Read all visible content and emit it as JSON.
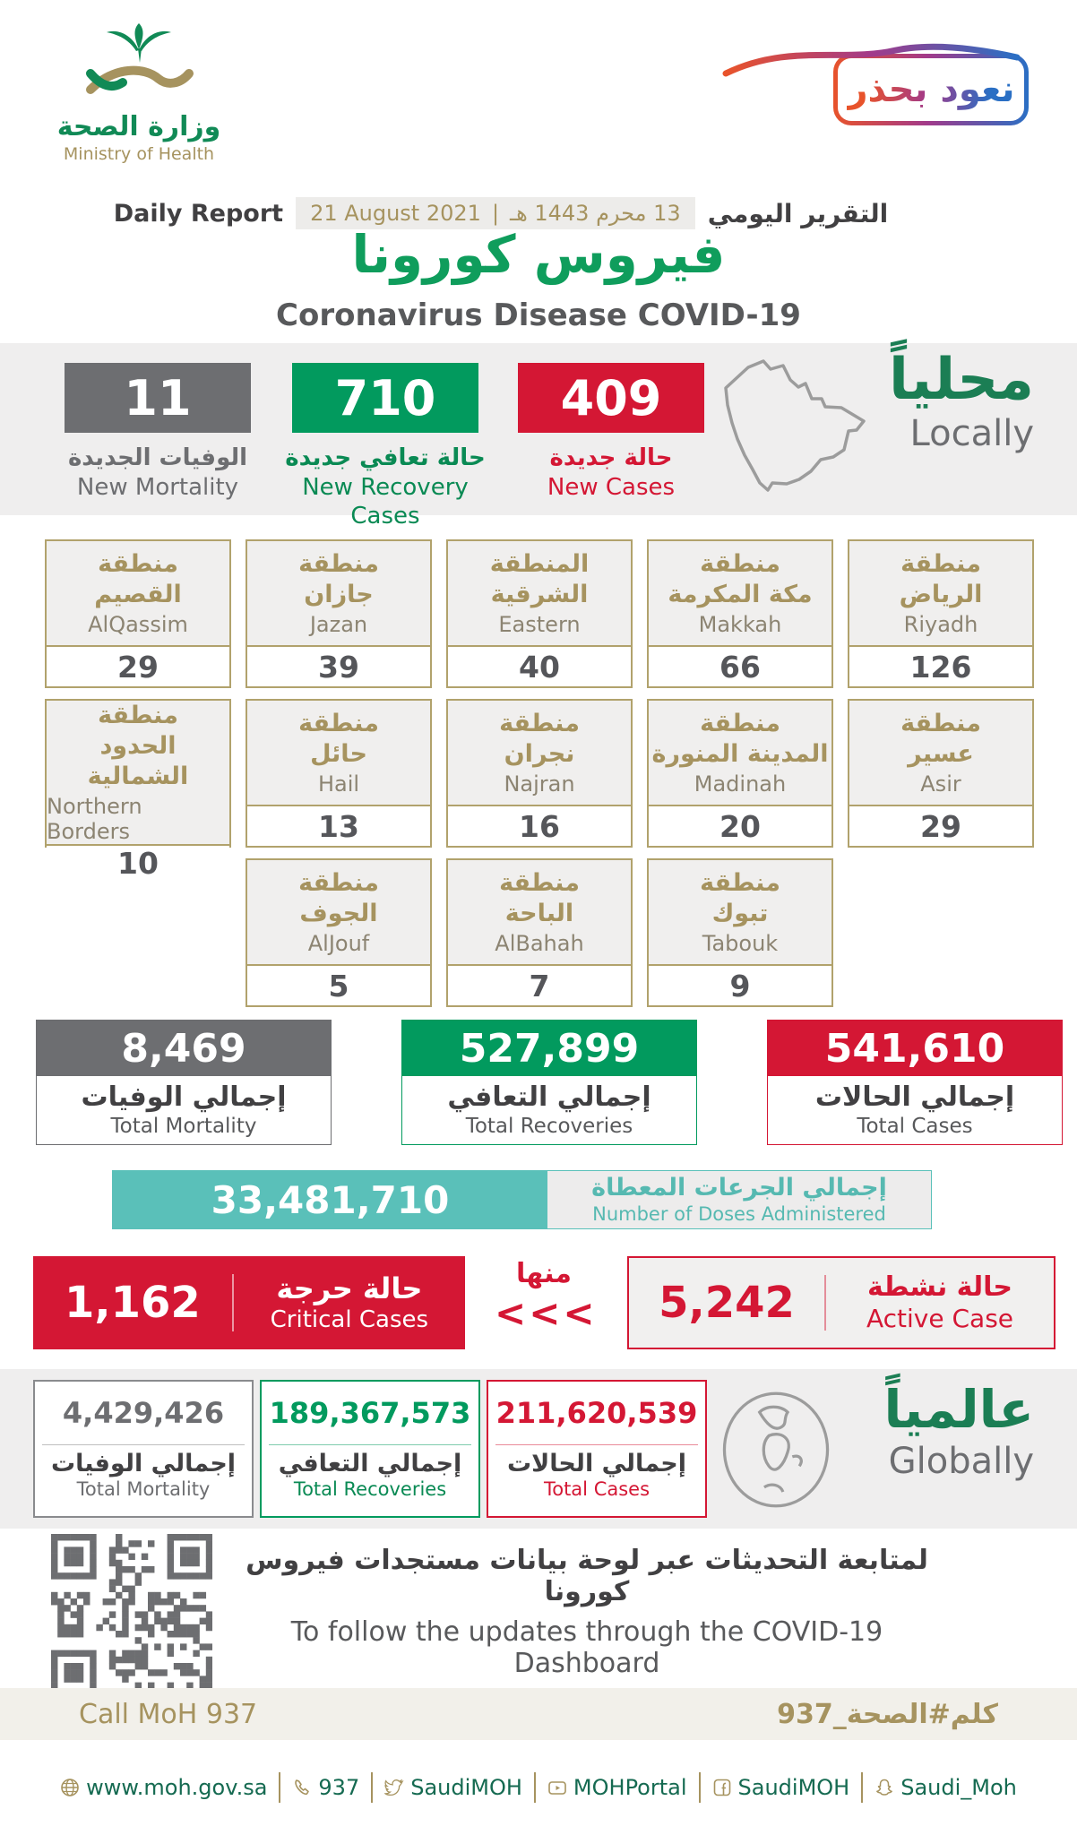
{
  "header": {
    "logo": {
      "title_ar": "وزارة الصحة",
      "title_en": "Ministry of Health"
    },
    "badge": {
      "text_ar": "نعود بحذر"
    },
    "report": {
      "label_en": "Daily Report",
      "date_gregorian": "21 August 2021",
      "date_separator": "|",
      "date_hijri": "13 محرم 1443 هـ",
      "label_ar": "التقرير اليومي"
    },
    "title_ar": "فيروس كورونا",
    "title_en": "Coronavirus Disease COVID-19"
  },
  "locally": {
    "heading_ar": "محلياً",
    "heading_en": "Locally",
    "new_mortality": {
      "value": "11",
      "label_ar": "الوفيات الجديدة",
      "label_en": "New Mortality"
    },
    "new_recoveries": {
      "value": "710",
      "label_ar": "حالة تعافي جديدة",
      "label_en": "New Recovery Cases"
    },
    "new_cases": {
      "value": "409",
      "label_ar": "حالة جديدة",
      "label_en": "New Cases"
    }
  },
  "regions": {
    "items": [
      {
        "ar1": "منطقة",
        "ar2": "القصيم",
        "en": "AlQassim",
        "value": "29"
      },
      {
        "ar1": "منطقة",
        "ar2": "جازان",
        "en": "Jazan",
        "value": "39"
      },
      {
        "ar1": "المنطقة",
        "ar2": "الشرقية",
        "en": "Eastern",
        "value": "40"
      },
      {
        "ar1": "منطقة",
        "ar2": "مكة المكرمة",
        "en": "Makkah",
        "value": "66"
      },
      {
        "ar1": "منطقة",
        "ar2": "الرياض",
        "en": "Riyadh",
        "value": "126"
      },
      {
        "ar1": "منطقة",
        "ar2": "الحدود الشمالية",
        "en": "Northern Borders",
        "value": "10"
      },
      {
        "ar1": "منطقة",
        "ar2": "حائل",
        "en": "Hail",
        "value": "13"
      },
      {
        "ar1": "منطقة",
        "ar2": "نجران",
        "en": "Najran",
        "value": "16"
      },
      {
        "ar1": "منطقة",
        "ar2": "المدينة المنورة",
        "en": "Madinah",
        "value": "20"
      },
      {
        "ar1": "منطقة",
        "ar2": "عسير",
        "en": "Asir",
        "value": "29"
      },
      {
        "ar1": "منطقة",
        "ar2": "الجوف",
        "en": "AlJouf",
        "value": "5"
      },
      {
        "ar1": "منطقة",
        "ar2": "الباحة",
        "en": "AlBahah",
        "value": "7"
      },
      {
        "ar1": "منطقة",
        "ar2": "تبوك",
        "en": "Tabouk",
        "value": "9"
      }
    ]
  },
  "totals": {
    "mortality": {
      "value": "8,469",
      "label_ar": "إجمالي الوفيات",
      "label_en": "Total Mortality"
    },
    "recoveries": {
      "value": "527,899",
      "label_ar": "إجمالي التعافي",
      "label_en": "Total Recoveries"
    },
    "cases": {
      "value": "541,610",
      "label_ar": "إجمالي الحالات",
      "label_en": "Total Cases"
    }
  },
  "doses": {
    "value": "33,481,710",
    "label_ar": "إجمالي الجرعات المعطاة",
    "label_en": "Number of Doses Administered"
  },
  "critical": {
    "value": "1,162",
    "label_ar": "حالة حرجة",
    "label_en": "Critical Cases"
  },
  "of_which": {
    "label_ar": "منها",
    "chevrons": "<<<"
  },
  "active": {
    "value": "5,242",
    "label_ar": "حالة نشطة",
    "label_en": "Active Case"
  },
  "globally": {
    "heading_ar": "عالمياً",
    "heading_en": "Globally",
    "mortality": {
      "value": "4,429,426",
      "label_ar": "إجمالي الوفيات",
      "label_en": "Total Mortality"
    },
    "recoveries": {
      "value": "189,367,573",
      "label_ar": "إجمالي التعافي",
      "label_en": "Total Recoveries"
    },
    "cases": {
      "value": "211,620,539",
      "label_ar": "إجمالي الحالات",
      "label_en": "Total Cases"
    }
  },
  "dashboard": {
    "text_ar": "لمتابعة التحديثات عبر لوحة بيانات مستجدات فيروس كورونا",
    "text_en": "To follow the updates through the COVID-19 Dashboard",
    "url": "https://covid19.moh.gov.sa"
  },
  "call": {
    "left_en": "Call MoH 937",
    "right_ar": "كلم#الصحة_937"
  },
  "footer": {
    "items": [
      {
        "icon": "globe-icon",
        "label": "www.moh.gov.sa"
      },
      {
        "icon": "phone-icon",
        "label": "937"
      },
      {
        "icon": "twitter-icon",
        "label": "SaudiMOH"
      },
      {
        "icon": "youtube-icon",
        "label": "MOHPortal"
      },
      {
        "icon": "facebook-icon",
        "label": "SaudiMOH"
      },
      {
        "icon": "snapchat-icon",
        "label": "Saudi_Moh"
      }
    ]
  },
  "colors": {
    "brand_green": "#0f9d5c",
    "dark_green": "#1b7e54",
    "box_green": "#029a5e",
    "red": "#d41734",
    "gray": "#6d6e71",
    "gold": "#a6935f",
    "teal": "#5ac0b9",
    "section_bg": "#efeeee",
    "text_dark": "#414042",
    "text_gray": "#58595b",
    "badge_gradient": [
      "#e8532b",
      "#a23a8a",
      "#2a6fc4"
    ]
  }
}
